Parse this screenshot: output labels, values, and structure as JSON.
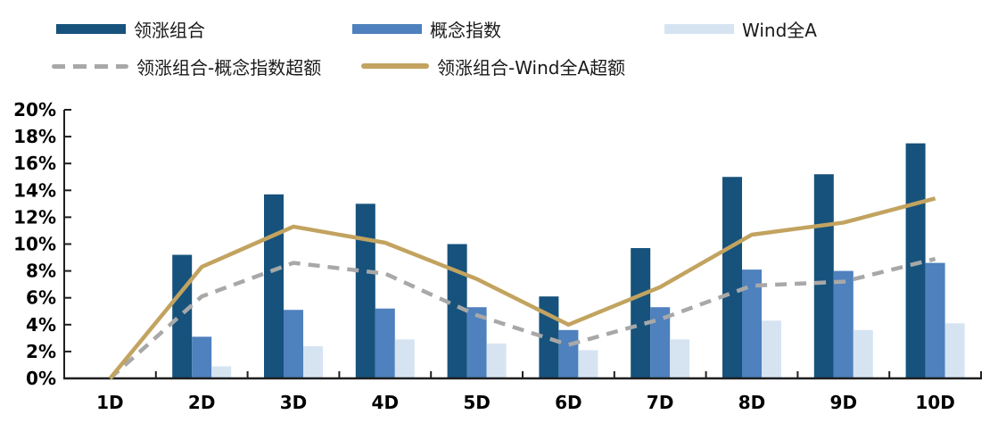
{
  "chart_data": {
    "type": "bar",
    "subtype": "grouped-bar-with-overlay-lines",
    "title": "",
    "xlabel": "",
    "ylabel": "",
    "categories": [
      "1D",
      "2D",
      "3D",
      "4D",
      "5D",
      "6D",
      "7D",
      "8D",
      "9D",
      "10D"
    ],
    "bar_series": [
      {
        "name": "领涨组合",
        "color": "#16527c",
        "values": [
          0.0,
          9.2,
          13.7,
          13.0,
          10.0,
          6.1,
          9.7,
          15.0,
          15.2,
          17.5
        ]
      },
      {
        "name": "概念指数",
        "color": "#4e81bd",
        "values": [
          0.0,
          3.1,
          5.1,
          5.2,
          5.3,
          3.6,
          5.3,
          8.1,
          8.0,
          8.6
        ]
      },
      {
        "name": "Wind全A",
        "color": "#d6e4f2",
        "values": [
          0.0,
          0.9,
          2.4,
          2.9,
          2.6,
          2.1,
          2.9,
          4.3,
          3.6,
          4.1
        ]
      }
    ],
    "line_series": [
      {
        "name": "领涨组合-概念指数超额",
        "color": "#a8a8a8",
        "style": "dashed",
        "values": [
          0.0,
          6.1,
          8.6,
          7.8,
          4.7,
          2.5,
          4.4,
          6.9,
          7.2,
          8.9
        ]
      },
      {
        "name": "领涨组合-Wind全A超额",
        "color": "#c2a35f",
        "style": "solid",
        "values": [
          0.0,
          8.3,
          11.3,
          10.1,
          7.4,
          4.0,
          6.8,
          10.7,
          11.6,
          13.4
        ]
      }
    ],
    "ylim": [
      0,
      20
    ],
    "ytick_step": 2,
    "ytick_suffix": "%",
    "ytick_labels": [
      "0%",
      "2%",
      "4%",
      "6%",
      "8%",
      "10%",
      "12%",
      "14%",
      "16%",
      "18%",
      "20%"
    ],
    "grid": false,
    "legend_position": "top",
    "axis_color": "#1f1f1f",
    "tick_label_color": "#000000"
  }
}
